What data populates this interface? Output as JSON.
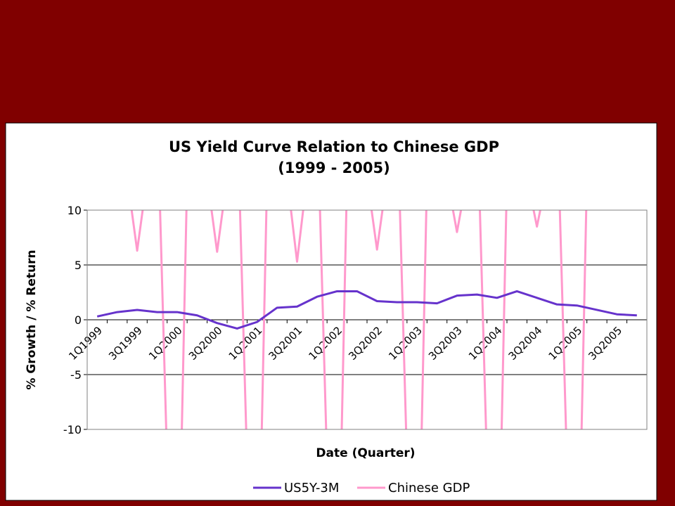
{
  "slide": {
    "background": "#800000"
  },
  "chart_data": {
    "type": "line",
    "title": "US Yield Curve Relation to Chinese GDP",
    "subtitle": "(1999 - 2005)",
    "xlabel": "Date (Quarter)",
    "ylabel": "% Growth / % Return",
    "ylim": [
      -10,
      10
    ],
    "yticks": [
      10,
      5,
      0,
      -5,
      -10
    ],
    "grid": true,
    "legend_position": "bottom",
    "x": [
      "1Q1999",
      "2Q1999",
      "3Q1999",
      "4Q1999",
      "1Q2000",
      "2Q2000",
      "3Q2000",
      "4Q2000",
      "1Q2001",
      "2Q2001",
      "3Q2001",
      "4Q2001",
      "1Q2002",
      "2Q2002",
      "3Q2002",
      "4Q2002",
      "1Q2003",
      "2Q2003",
      "3Q2003",
      "4Q2003",
      "1Q2004",
      "2Q2004",
      "3Q2004",
      "4Q2004",
      "1Q2005",
      "2Q2005",
      "3Q2005",
      "4Q2005"
    ],
    "xtick_labels": [
      "1Q1999",
      "3Q1999",
      "1Q2000",
      "3Q2000",
      "1Q2001",
      "3Q2001",
      "1Q2002",
      "3Q2002",
      "1Q2003",
      "3Q2003",
      "1Q2004",
      "3Q2004",
      "1Q2005",
      "3Q2005"
    ],
    "series": [
      {
        "name": "US5Y-3M",
        "color": "#6633CC",
        "values": [
          0.3,
          0.7,
          0.9,
          0.7,
          0.7,
          0.4,
          -0.3,
          -0.8,
          -0.2,
          1.1,
          1.2,
          2.1,
          2.6,
          2.6,
          1.7,
          1.6,
          1.6,
          1.5,
          2.2,
          2.3,
          2.0,
          2.6,
          2.0,
          1.4,
          1.3,
          0.9,
          0.5,
          0.4
        ]
      },
      {
        "name": "Chinese GDP",
        "color": "#FF99CC",
        "values": [
          null,
          null,
          6.3,
          null,
          null,
          null,
          6.2,
          null,
          null,
          null,
          5.3,
          null,
          null,
          null,
          6.4,
          null,
          null,
          null,
          8.0,
          null,
          null,
          null,
          8.5,
          null,
          null,
          null,
          null,
          null
        ]
      }
    ]
  }
}
